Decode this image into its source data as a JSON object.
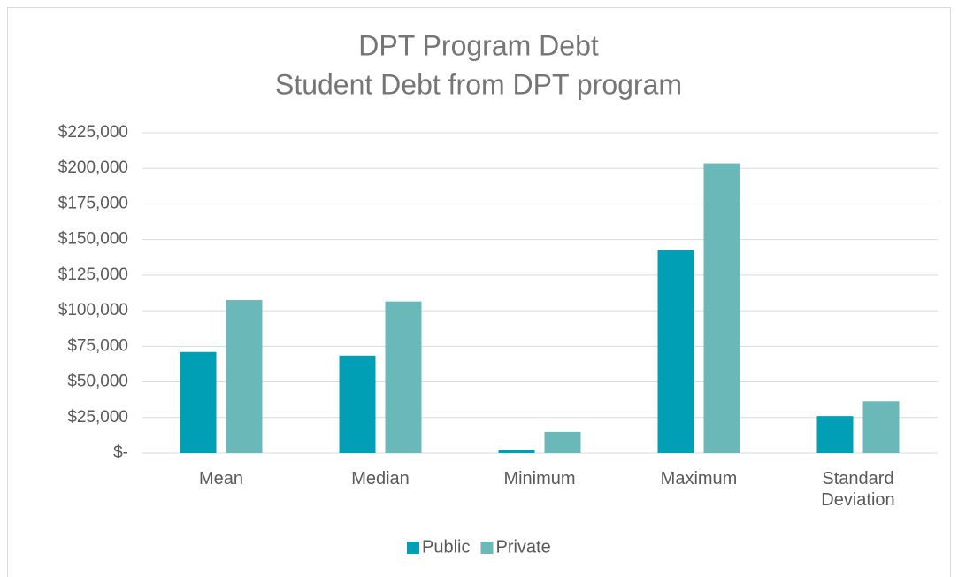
{
  "chart_data": {
    "type": "bar",
    "title": "DPT Program Debt",
    "subtitle": "Student Debt from DPT program",
    "categories": [
      "Mean",
      "Median",
      "Minimum",
      "Maximum",
      "Standard Deviation"
    ],
    "series": [
      {
        "name": "Public",
        "color": "#009fb5",
        "values": [
          71000,
          68500,
          2000,
          142500,
          26000
        ]
      },
      {
        "name": "Private",
        "color": "#6bb8b8",
        "values": [
          107500,
          106500,
          15000,
          203500,
          36500
        ]
      }
    ],
    "ylim": [
      0,
      225000
    ],
    "yticks": [
      {
        "value": 0,
        "label": "$-"
      },
      {
        "value": 25000,
        "label": "$25,000"
      },
      {
        "value": 50000,
        "label": "$50,000"
      },
      {
        "value": 75000,
        "label": "$75,000"
      },
      {
        "value": 100000,
        "label": "$100,000"
      },
      {
        "value": 125000,
        "label": "$125,000"
      },
      {
        "value": 150000,
        "label": "$150,000"
      },
      {
        "value": 175000,
        "label": "$175,000"
      },
      {
        "value": 200000,
        "label": "$200,000"
      },
      {
        "value": 225000,
        "label": "$225,000"
      }
    ],
    "grid": true,
    "legend": "bottom"
  }
}
